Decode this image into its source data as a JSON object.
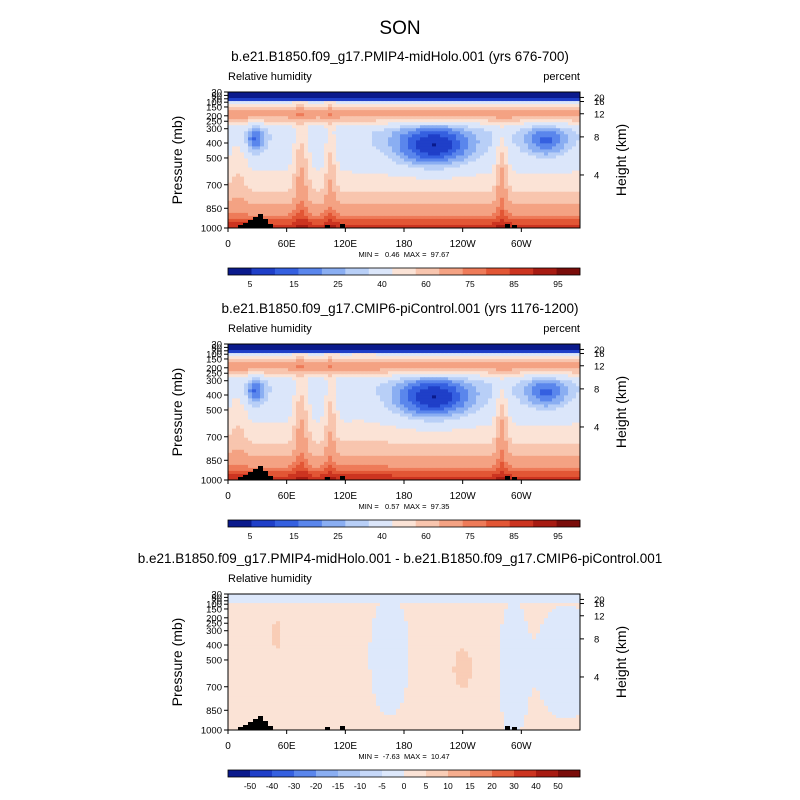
{
  "figure_title": "SON",
  "chart_data": [
    {
      "type": "heatmap",
      "title": "b.e21.B1850.f09_g17.PMIP4-midHolo.001 (yrs 676-700)",
      "left_label": "Relative humidity",
      "right_label": "percent",
      "ylabel": "Pressure (mb)",
      "y2label": "Height (km)",
      "x_ticks": [
        "0",
        "60E",
        "120E",
        "180",
        "120W",
        "60W"
      ],
      "y_ticks": [
        "1000",
        "850",
        "700",
        "500",
        "400",
        "300",
        "250",
        "200",
        "150",
        "100",
        "70",
        "50",
        "30"
      ],
      "y2_ticks": [
        "4",
        "8",
        "12",
        "16",
        "20"
      ],
      "stats": "MIN =   0.46  MAX =  97.67",
      "min": 0.46,
      "max": 97.67,
      "colorbar": {
        "labels": [
          "5",
          "15",
          "25",
          "40",
          "60",
          "75",
          "85",
          "95"
        ],
        "colors": [
          "#0a1a8c",
          "#1f3fc8",
          "#3560e0",
          "#5a86ec",
          "#8aaef2",
          "#b8cff7",
          "#dbe6fa",
          "#fbe3d6",
          "#f8c5ae",
          "#f4a283",
          "#ee7b59",
          "#e25635",
          "#cc3420",
          "#a71b12",
          "#7a0d0a"
        ]
      },
      "fields": {
        "dry_core_relhum": 8,
        "moist_surface_relhum": 92
      }
    },
    {
      "type": "heatmap",
      "title": "b.e21.B1850.f09_g17.CMIP6-piControl.001 (yrs 1176-1200)",
      "left_label": "Relative humidity",
      "right_label": "percent",
      "ylabel": "Pressure (mb)",
      "y2label": "Height (km)",
      "x_ticks": [
        "0",
        "60E",
        "120E",
        "180",
        "120W",
        "60W"
      ],
      "y_ticks": [
        "1000",
        "850",
        "700",
        "500",
        "400",
        "300",
        "250",
        "200",
        "150",
        "100",
        "70",
        "50",
        "30"
      ],
      "y2_ticks": [
        "4",
        "8",
        "12",
        "16",
        "20"
      ],
      "stats": "MIN =   0.57  MAX =  97.35",
      "min": 0.57,
      "max": 97.35,
      "colorbar": {
        "labels": [
          "5",
          "15",
          "25",
          "40",
          "60",
          "75",
          "85",
          "95"
        ],
        "colors": [
          "#0a1a8c",
          "#1f3fc8",
          "#3560e0",
          "#5a86ec",
          "#8aaef2",
          "#b8cff7",
          "#dbe6fa",
          "#fbe3d6",
          "#f8c5ae",
          "#f4a283",
          "#ee7b59",
          "#e25635",
          "#cc3420",
          "#a71b12",
          "#7a0d0a"
        ]
      },
      "fields": {
        "dry_core_relhum": 8,
        "moist_surface_relhum": 92
      }
    },
    {
      "type": "heatmap",
      "title": "b.e21.B1850.f09_g17.PMIP4-midHolo.001 - b.e21.B1850.f09_g17.CMIP6-piControl.001",
      "left_label": "Relative humidity",
      "right_label": "",
      "ylabel": "Pressure (mb)",
      "y2label": "Height (km)",
      "x_ticks": [
        "0",
        "60E",
        "120E",
        "180",
        "120W",
        "60W"
      ],
      "y_ticks": [
        "1000",
        "850",
        "700",
        "500",
        "400",
        "300",
        "250",
        "200",
        "150",
        "100",
        "70",
        "50",
        "30"
      ],
      "y2_ticks": [
        "4",
        "8",
        "12",
        "16",
        "20"
      ],
      "stats": "MIN =  -7.63  MAX =  10.47",
      "min": -7.63,
      "max": 10.47,
      "colorbar": {
        "labels": [
          "-50",
          "-40",
          "-30",
          "-20",
          "-15",
          "-10",
          "-5",
          "0",
          "5",
          "10",
          "15",
          "20",
          "30",
          "40",
          "50"
        ],
        "colors": [
          "#0a1a8c",
          "#1f3fc8",
          "#3560e0",
          "#5a86ec",
          "#8aaef2",
          "#a9c4f4",
          "#c6d8f8",
          "#dde8fb",
          "#fbe3d6",
          "#f9cdb6",
          "#f5ad8e",
          "#ef8a66",
          "#e4603d",
          "#cc3420",
          "#a71b12",
          "#7a0d0a"
        ]
      },
      "fields": {
        "background_diff": 1,
        "negative_diff": -3,
        "positive_diff": 4
      }
    }
  ]
}
